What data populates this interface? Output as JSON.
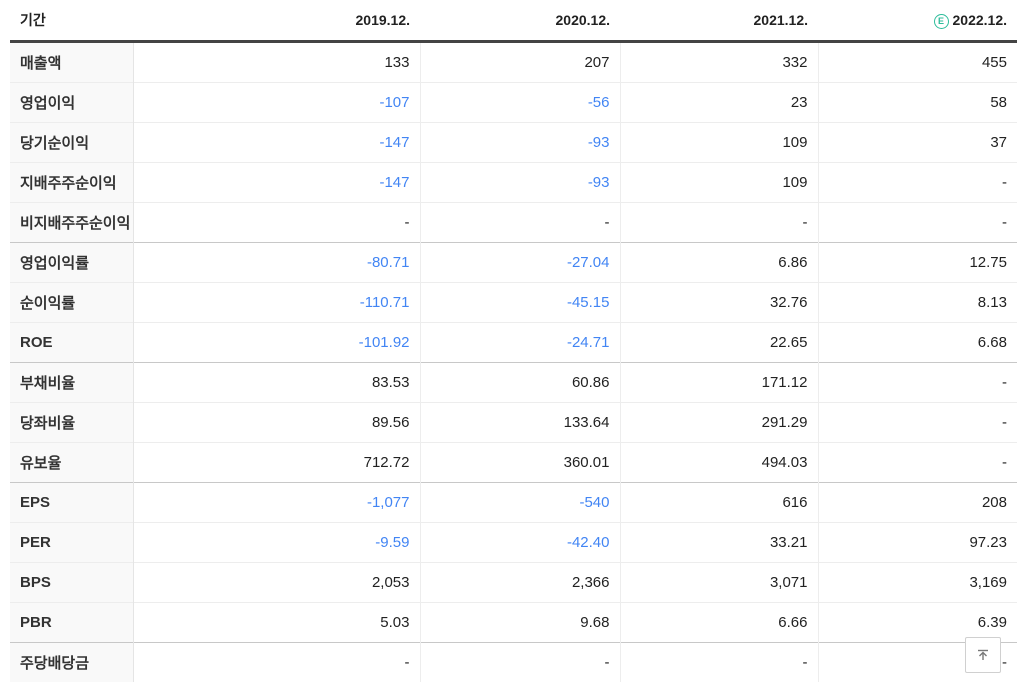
{
  "colors": {
    "negative_value": "#4285f4",
    "estimate_badge": "#2ebd9b",
    "header_border": "#444444",
    "section_border": "#c8c8c8",
    "row_border": "#ededed",
    "label_column_bg": "#f9f9f9"
  },
  "table": {
    "period_header": "기간",
    "columns": [
      {
        "label": "2019.12.",
        "estimate": false
      },
      {
        "label": "2020.12.",
        "estimate": false
      },
      {
        "label": "2021.12.",
        "estimate": false
      },
      {
        "label": "2022.12.",
        "estimate": true,
        "estimate_symbol": "E"
      }
    ],
    "rows": [
      {
        "label": "매출액",
        "values": [
          "133",
          "207",
          "332",
          "455"
        ],
        "section_start": false
      },
      {
        "label": "영업이익",
        "values": [
          "-107",
          "-56",
          "23",
          "58"
        ],
        "section_start": false
      },
      {
        "label": "당기순이익",
        "values": [
          "-147",
          "-93",
          "109",
          "37"
        ],
        "section_start": false
      },
      {
        "label": "지배주주순이익",
        "values": [
          "-147",
          "-93",
          "109",
          "-"
        ],
        "section_start": false
      },
      {
        "label": "비지배주주순이익",
        "values": [
          "-",
          "-",
          "-",
          "-"
        ],
        "section_start": false
      },
      {
        "label": "영업이익률",
        "values": [
          "-80.71",
          "-27.04",
          "6.86",
          "12.75"
        ],
        "section_start": true
      },
      {
        "label": "순이익률",
        "values": [
          "-110.71",
          "-45.15",
          "32.76",
          "8.13"
        ],
        "section_start": false
      },
      {
        "label": "ROE",
        "values": [
          "-101.92",
          "-24.71",
          "22.65",
          "6.68"
        ],
        "section_start": false
      },
      {
        "label": "부채비율",
        "values": [
          "83.53",
          "60.86",
          "171.12",
          "-"
        ],
        "section_start": true
      },
      {
        "label": "당좌비율",
        "values": [
          "89.56",
          "133.64",
          "291.29",
          "-"
        ],
        "section_start": false
      },
      {
        "label": "유보율",
        "values": [
          "712.72",
          "360.01",
          "494.03",
          "-"
        ],
        "section_start": false
      },
      {
        "label": "EPS",
        "values": [
          "-1,077",
          "-540",
          "616",
          "208"
        ],
        "section_start": true
      },
      {
        "label": "PER",
        "values": [
          "-9.59",
          "-42.40",
          "33.21",
          "97.23"
        ],
        "section_start": false
      },
      {
        "label": "BPS",
        "values": [
          "2,053",
          "2,366",
          "3,071",
          "3,169"
        ],
        "section_start": false
      },
      {
        "label": "PBR",
        "values": [
          "5.03",
          "9.68",
          "6.66",
          "6.39"
        ],
        "section_start": false
      },
      {
        "label": "주당배당금",
        "values": [
          "-",
          "-",
          "-",
          "-"
        ],
        "section_start": true
      }
    ]
  },
  "scroll_top_button": {
    "icon": "scroll-to-top-icon"
  }
}
